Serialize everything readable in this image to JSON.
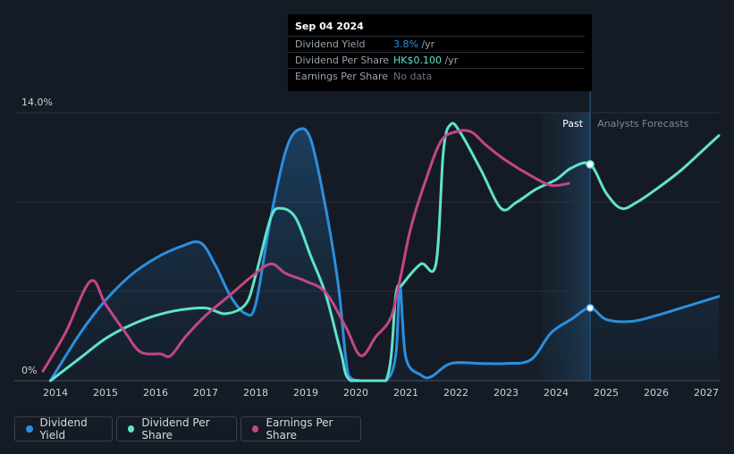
{
  "chart_data": {
    "type": "line",
    "title": "",
    "xlabel": "",
    "ylabel": "",
    "ylim": [
      0,
      14
    ],
    "y_tick_labels": [
      "0%",
      "14.0%"
    ],
    "x_ticks": [
      2014,
      2015,
      2016,
      2017,
      2018,
      2019,
      2020,
      2021,
      2022,
      2023,
      2024,
      2025,
      2026,
      2027
    ],
    "xlim": [
      2013.75,
      2027.25
    ],
    "past_label": "Past",
    "forecast_label": "Analysts Forecasts",
    "forecast_start": 2023.7,
    "today": 2024.68,
    "series": [
      {
        "name": "Dividend Yield",
        "color": "#2b8fe0",
        "area": true,
        "points": [
          [
            2013.9,
            0
          ],
          [
            2014.5,
            2.5
          ],
          [
            2015,
            4.2
          ],
          [
            2015.5,
            5.5
          ],
          [
            2016,
            6.4
          ],
          [
            2016.5,
            7.0
          ],
          [
            2016.9,
            7.2
          ],
          [
            2017.2,
            6.0
          ],
          [
            2017.5,
            4.4
          ],
          [
            2017.8,
            3.5
          ],
          [
            2018,
            4.0
          ],
          [
            2018.3,
            8.5
          ],
          [
            2018.6,
            12.0
          ],
          [
            2018.85,
            13.1
          ],
          [
            2019.1,
            12.6
          ],
          [
            2019.4,
            9.0
          ],
          [
            2019.65,
            5.0
          ],
          [
            2019.85,
            0.3
          ],
          [
            2020.1,
            0
          ],
          [
            2020.6,
            0
          ],
          [
            2020.8,
            1.4
          ],
          [
            2020.88,
            5.0
          ],
          [
            2021.0,
            1.2
          ],
          [
            2021.3,
            0.3
          ],
          [
            2021.5,
            0.2
          ],
          [
            2021.9,
            0.9
          ],
          [
            2022.5,
            0.9
          ],
          [
            2023,
            0.9
          ],
          [
            2023.5,
            1.1
          ],
          [
            2023.9,
            2.5
          ],
          [
            2024.3,
            3.2
          ],
          [
            2024.68,
            3.8
          ],
          [
            2025.0,
            3.2
          ],
          [
            2025.5,
            3.1
          ],
          [
            2026,
            3.4
          ],
          [
            2026.5,
            3.8
          ],
          [
            2027,
            4.2
          ],
          [
            2027.25,
            4.4
          ]
        ]
      },
      {
        "name": "Dividend Per Share",
        "color": "#5fe3cc",
        "area": false,
        "points": [
          [
            2013.9,
            0
          ],
          [
            2014.5,
            1.2
          ],
          [
            2015,
            2.2
          ],
          [
            2015.5,
            2.9
          ],
          [
            2016,
            3.4
          ],
          [
            2016.5,
            3.7
          ],
          [
            2017,
            3.8
          ],
          [
            2017.4,
            3.5
          ],
          [
            2017.8,
            4.0
          ],
          [
            2018,
            5.5
          ],
          [
            2018.3,
            8.5
          ],
          [
            2018.5,
            9.0
          ],
          [
            2018.8,
            8.5
          ],
          [
            2019.1,
            6.5
          ],
          [
            2019.4,
            4.5
          ],
          [
            2019.7,
            1.5
          ],
          [
            2019.9,
            0
          ],
          [
            2020.6,
            0
          ],
          [
            2020.8,
            4.5
          ],
          [
            2020.92,
            5.0
          ],
          [
            2021.3,
            6.1
          ],
          [
            2021.6,
            6.1
          ],
          [
            2021.75,
            12.0
          ],
          [
            2021.9,
            13.4
          ],
          [
            2022.1,
            12.9
          ],
          [
            2022.5,
            11.0
          ],
          [
            2022.9,
            9.0
          ],
          [
            2023.2,
            9.3
          ],
          [
            2023.6,
            10.0
          ],
          [
            2024,
            10.5
          ],
          [
            2024.3,
            11.1
          ],
          [
            2024.68,
            11.3
          ],
          [
            2025,
            9.8
          ],
          [
            2025.3,
            9.0
          ],
          [
            2025.6,
            9.3
          ],
          [
            2026,
            10.0
          ],
          [
            2026.5,
            11.0
          ],
          [
            2027,
            12.2
          ],
          [
            2027.25,
            12.8
          ]
        ]
      },
      {
        "name": "Earnings Per Share",
        "color": "#c2468a",
        "area": false,
        "points": [
          [
            2013.75,
            0.5
          ],
          [
            2014.2,
            2.5
          ],
          [
            2014.7,
            5.2
          ],
          [
            2015,
            4.0
          ],
          [
            2015.4,
            2.5
          ],
          [
            2015.7,
            1.5
          ],
          [
            2016.1,
            1.4
          ],
          [
            2016.3,
            1.3
          ],
          [
            2016.6,
            2.3
          ],
          [
            2017,
            3.4
          ],
          [
            2017.5,
            4.5
          ],
          [
            2017.9,
            5.4
          ],
          [
            2018.3,
            6.1
          ],
          [
            2018.6,
            5.6
          ],
          [
            2019,
            5.2
          ],
          [
            2019.4,
            4.6
          ],
          [
            2019.8,
            2.8
          ],
          [
            2020.1,
            1.3
          ],
          [
            2020.4,
            2.3
          ],
          [
            2020.7,
            3.3
          ],
          [
            2020.9,
            5.5
          ],
          [
            2021.1,
            8.0
          ],
          [
            2021.4,
            10.5
          ],
          [
            2021.7,
            12.5
          ],
          [
            2022,
            13.0
          ],
          [
            2022.3,
            13.0
          ],
          [
            2022.6,
            12.3
          ],
          [
            2023,
            11.5
          ],
          [
            2023.5,
            10.7
          ],
          [
            2023.9,
            10.2
          ],
          [
            2024.25,
            10.3
          ]
        ]
      }
    ],
    "highlight_points": [
      {
        "series": "Dividend Yield",
        "x": 2024.68,
        "y": 3.8
      },
      {
        "series": "Dividend Per Share",
        "x": 2024.68,
        "y": 11.3
      }
    ]
  },
  "tooltip": {
    "date": "Sep 04 2024",
    "rows": [
      {
        "label": "Dividend Yield",
        "value": "3.8%",
        "unit": " /yr",
        "color": "#2b8fe0"
      },
      {
        "label": "Dividend Per Share",
        "value": "HK$0.100",
        "unit": " /yr",
        "color": "#5fe3cc"
      },
      {
        "label": "Earnings Per Share",
        "value": "No data",
        "unit": "",
        "color": "#6b737d"
      }
    ]
  },
  "legend": [
    {
      "label": "Dividend Yield",
      "color": "#2b8fe0"
    },
    {
      "label": "Dividend Per Share",
      "color": "#5fe3cc"
    },
    {
      "label": "Earnings Per Share",
      "color": "#c2468a"
    }
  ]
}
